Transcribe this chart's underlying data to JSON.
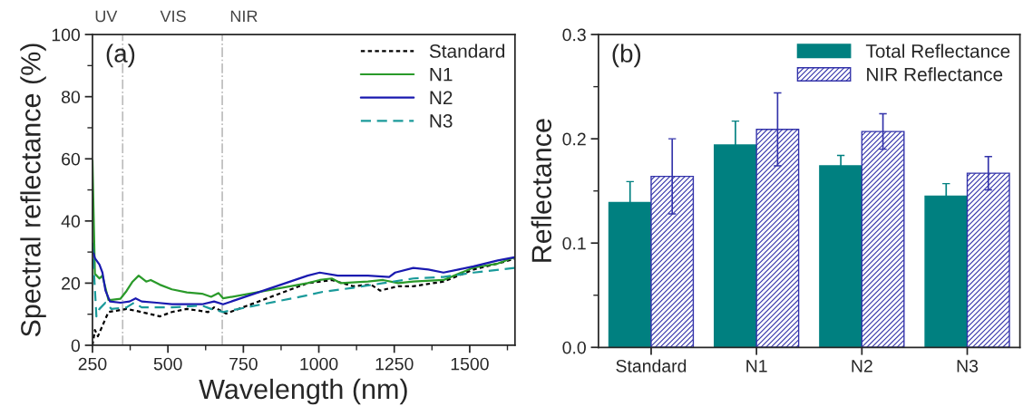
{
  "chart_data": [
    {
      "type": "line",
      "xlabel": "Wavelength (nm)",
      "ylabel": "Spectral reflectance (%)",
      "xlim": [
        250,
        1650
      ],
      "xticks": [
        250,
        500,
        750,
        1000,
        1250,
        1500
      ],
      "ylim": [
        0,
        100
      ],
      "yticks": [
        0,
        20,
        40,
        60,
        80,
        100
      ],
      "legend": "top right",
      "annotations": [
        "(a)",
        "UV",
        "VIS",
        "NIR"
      ],
      "ref_lines": [
        {
          "axis": "x",
          "value": 350,
          "color": "#bbbbbb",
          "line_style": "dashdot"
        },
        {
          "axis": "x",
          "value": 680,
          "color": "#bbbbbb",
          "line_style": "dashdot"
        }
      ],
      "series": [
        {
          "name": "Standard",
          "color": "#000000",
          "line_style": "dotted",
          "x": [
            250,
            258,
            268,
            283,
            303,
            333,
            363,
            413,
            473,
            513,
            563,
            633,
            653,
            693,
            963,
            1013,
            1043,
            1113,
            1173,
            1203,
            1263,
            1313,
            1413,
            1463,
            1513,
            1593,
            1648
          ],
          "values": [
            0,
            4.9,
            2.9,
            6.3,
            10.7,
            11.2,
            11.7,
            10.7,
            9.3,
            10.7,
            11.7,
            10.7,
            12.2,
            10.2,
            20,
            20.6,
            21,
            19,
            19.5,
            17.6,
            19,
            19,
            20.5,
            22.4,
            24.4,
            26.3,
            27.8
          ]
        },
        {
          "name": "N1",
          "color": "#2a9a2a",
          "line_style": "solid",
          "x": [
            250,
            258,
            273,
            283,
            303,
            313,
            343,
            363,
            383,
            403,
            428,
            443,
            473,
            513,
            563,
            613,
            643,
            668,
            683,
            963,
            1003,
            1043,
            1073,
            1163,
            1213,
            1263,
            1313,
            1413,
            1463,
            1513,
            1593,
            1648
          ],
          "values": [
            59.5,
            23,
            21.5,
            22.4,
            14.6,
            14.6,
            15,
            17.5,
            20.5,
            22.4,
            20.5,
            21,
            19.5,
            18,
            17,
            16.6,
            15.6,
            16.8,
            15.1,
            20,
            21,
            21.5,
            20,
            20.5,
            21,
            20,
            20.5,
            21,
            23,
            25,
            26.3,
            28.3
          ]
        },
        {
          "name": "N2",
          "color": "#1a1ab0",
          "line_style": "solid",
          "x": [
            250,
            258,
            273,
            283,
            293,
            308,
            343,
            373,
            393,
            413,
            463,
            513,
            613,
            653,
            683,
            963,
            1003,
            1063,
            1163,
            1233,
            1253,
            1313,
            1363,
            1413,
            1463,
            1513,
            1593,
            1648
          ],
          "values": [
            31,
            28,
            26,
            23.4,
            17.6,
            14.1,
            13.7,
            14.1,
            15.1,
            14.1,
            13.7,
            13.2,
            13.2,
            14.1,
            13.2,
            22.4,
            23.4,
            22.4,
            22.4,
            22,
            23.4,
            24.9,
            24.4,
            23.4,
            24.4,
            25.4,
            27.3,
            28.3
          ]
        },
        {
          "name": "N3",
          "color": "#1a9a9a",
          "line_style": "dashed",
          "x": [
            250,
            255,
            263,
            273,
            293,
            313,
            363,
            388,
            413,
            513,
            613,
            643,
            683,
            963,
            1013,
            1113,
            1213,
            1313,
            1413,
            1513,
            1648
          ],
          "values": [
            33,
            23.4,
            9.3,
            11.7,
            13.7,
            11.7,
            12.2,
            13.7,
            12.2,
            12.2,
            12.8,
            11.7,
            10.7,
            16.1,
            17.2,
            18.5,
            20,
            21.5,
            22,
            23.4,
            24.9
          ]
        }
      ]
    },
    {
      "type": "bar",
      "ylabel": "Reflectance",
      "categories": [
        "Standard",
        "N1",
        "N2",
        "N3"
      ],
      "ylim": [
        0,
        0.3
      ],
      "yticks": [
        {
          "value": 0,
          "label": "0.0"
        },
        {
          "value": 0.1,
          "label": "0.1"
        },
        {
          "value": 0.2,
          "label": "0.2"
        },
        {
          "value": 0.3,
          "label": "0.3"
        }
      ],
      "legend": "top right",
      "annotations": [
        "(b)"
      ],
      "series": [
        {
          "name": "Total Reflectance",
          "color": "#008080",
          "values": [
            0.139,
            0.194,
            0.174,
            0.145
          ],
          "errors": [
            0.02,
            0.023,
            0.01,
            0.012
          ]
        },
        {
          "name": "NIR Reflectance",
          "color": "#3333aa",
          "values": [
            0.164,
            0.209,
            0.207,
            0.167
          ],
          "errors": [
            0.036,
            0.035,
            0.017,
            0.016
          ]
        }
      ]
    }
  ]
}
